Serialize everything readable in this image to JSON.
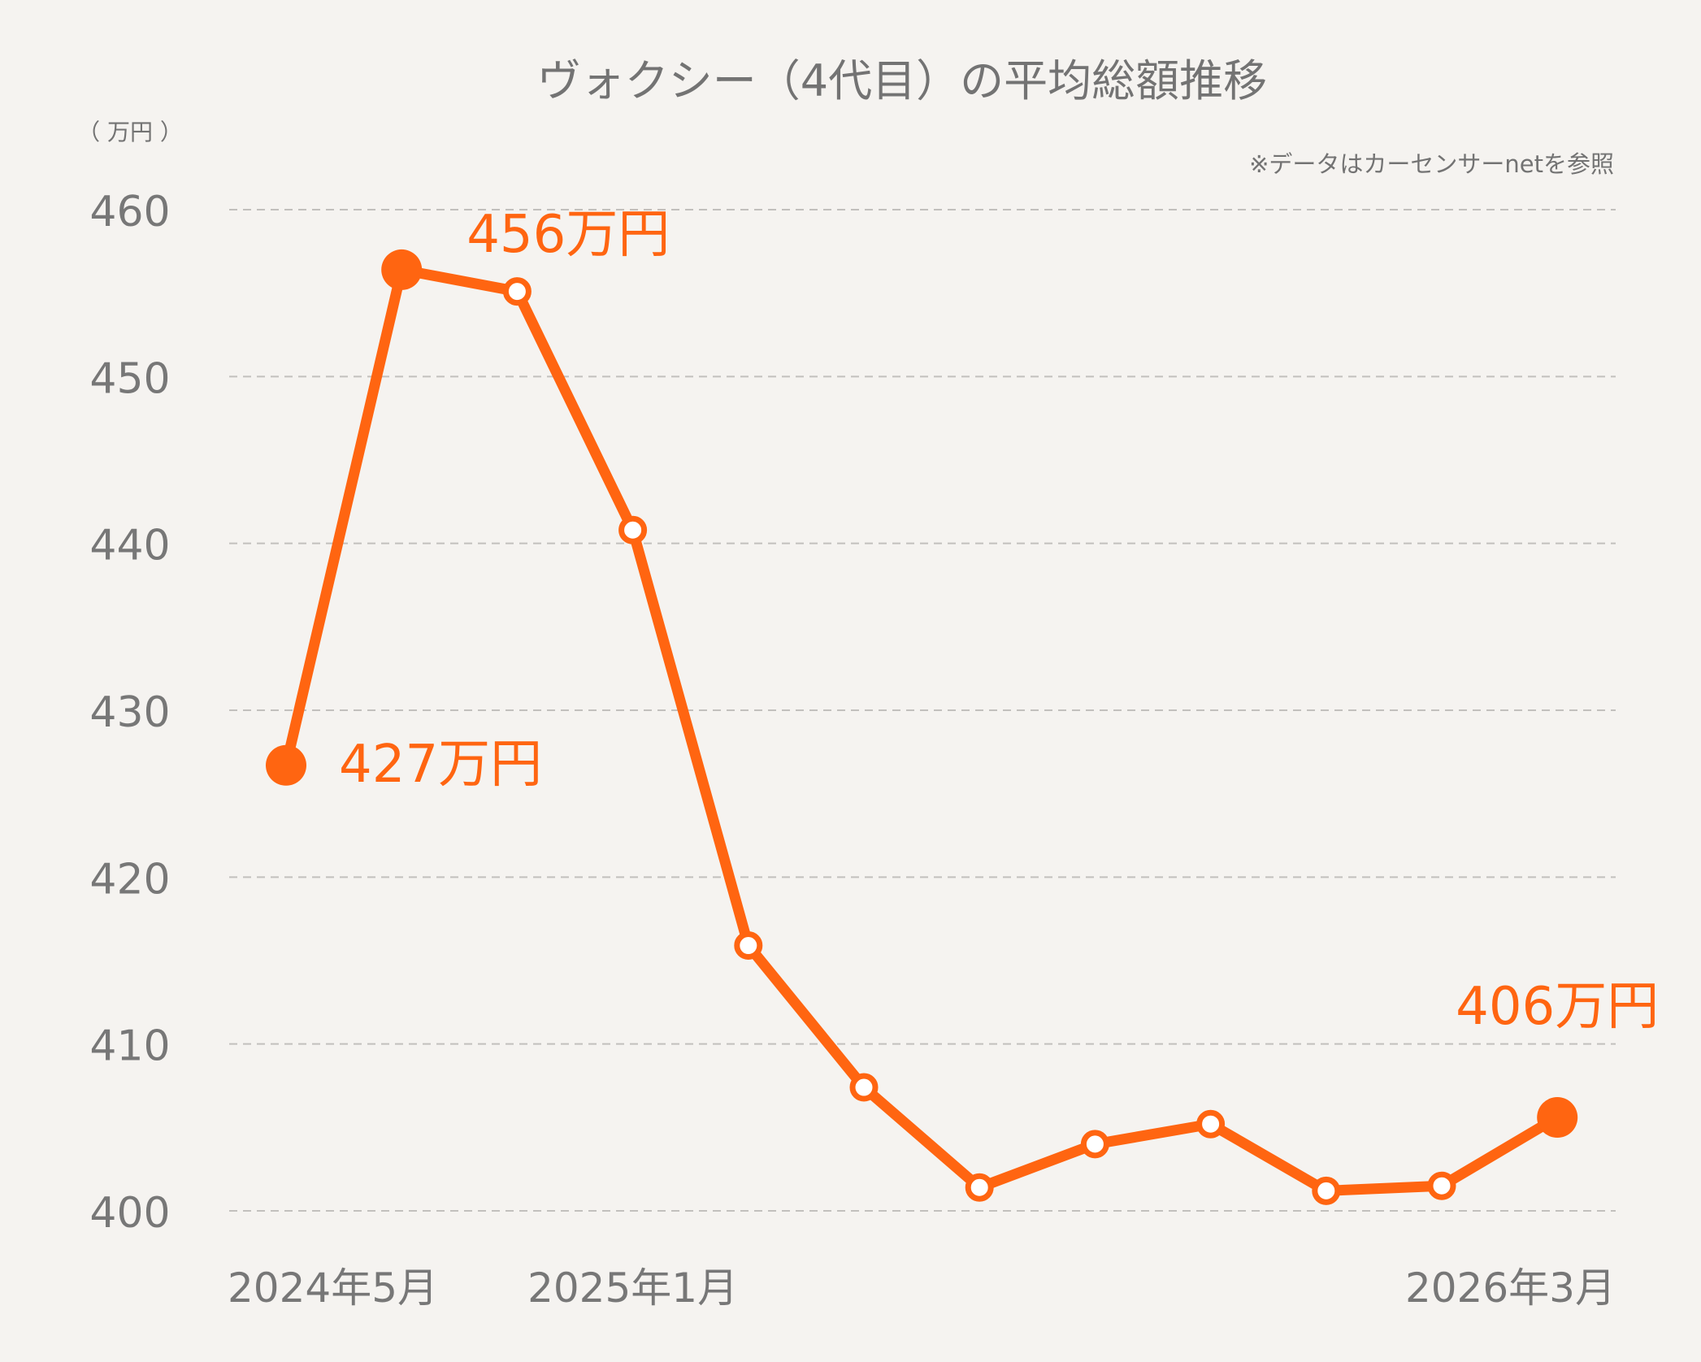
{
  "chart_data": {
    "type": "line",
    "title": "ヴォクシー（4代目）の平均総額推移",
    "unit_label": "（ 万円 ）",
    "source_note": "※データはカーセンサーnetを参照",
    "ylim": [
      400,
      460
    ],
    "yticks": [
      "400",
      "410",
      "420",
      "430",
      "440",
      "450",
      "460"
    ],
    "xlabels": [
      {
        "index": 0,
        "text": "2024年5月"
      },
      {
        "index": 3,
        "text": "2025年1月"
      },
      {
        "index": 11,
        "text": "2026年3月"
      }
    ],
    "grid": true,
    "series": [
      {
        "values": [
          426.7,
          456.4,
          455.1,
          440.8,
          415.9,
          407.4,
          401.4,
          404.0,
          405.2,
          401.2,
          401.5,
          405.6
        ],
        "color": "#ff6511"
      }
    ],
    "annotations": [
      {
        "index": 0,
        "text": "427万円"
      },
      {
        "index": 1,
        "text": "456万円"
      },
      {
        "index": 11,
        "text": "406万円"
      }
    ],
    "highlight_points": [
      0,
      1,
      11
    ]
  }
}
